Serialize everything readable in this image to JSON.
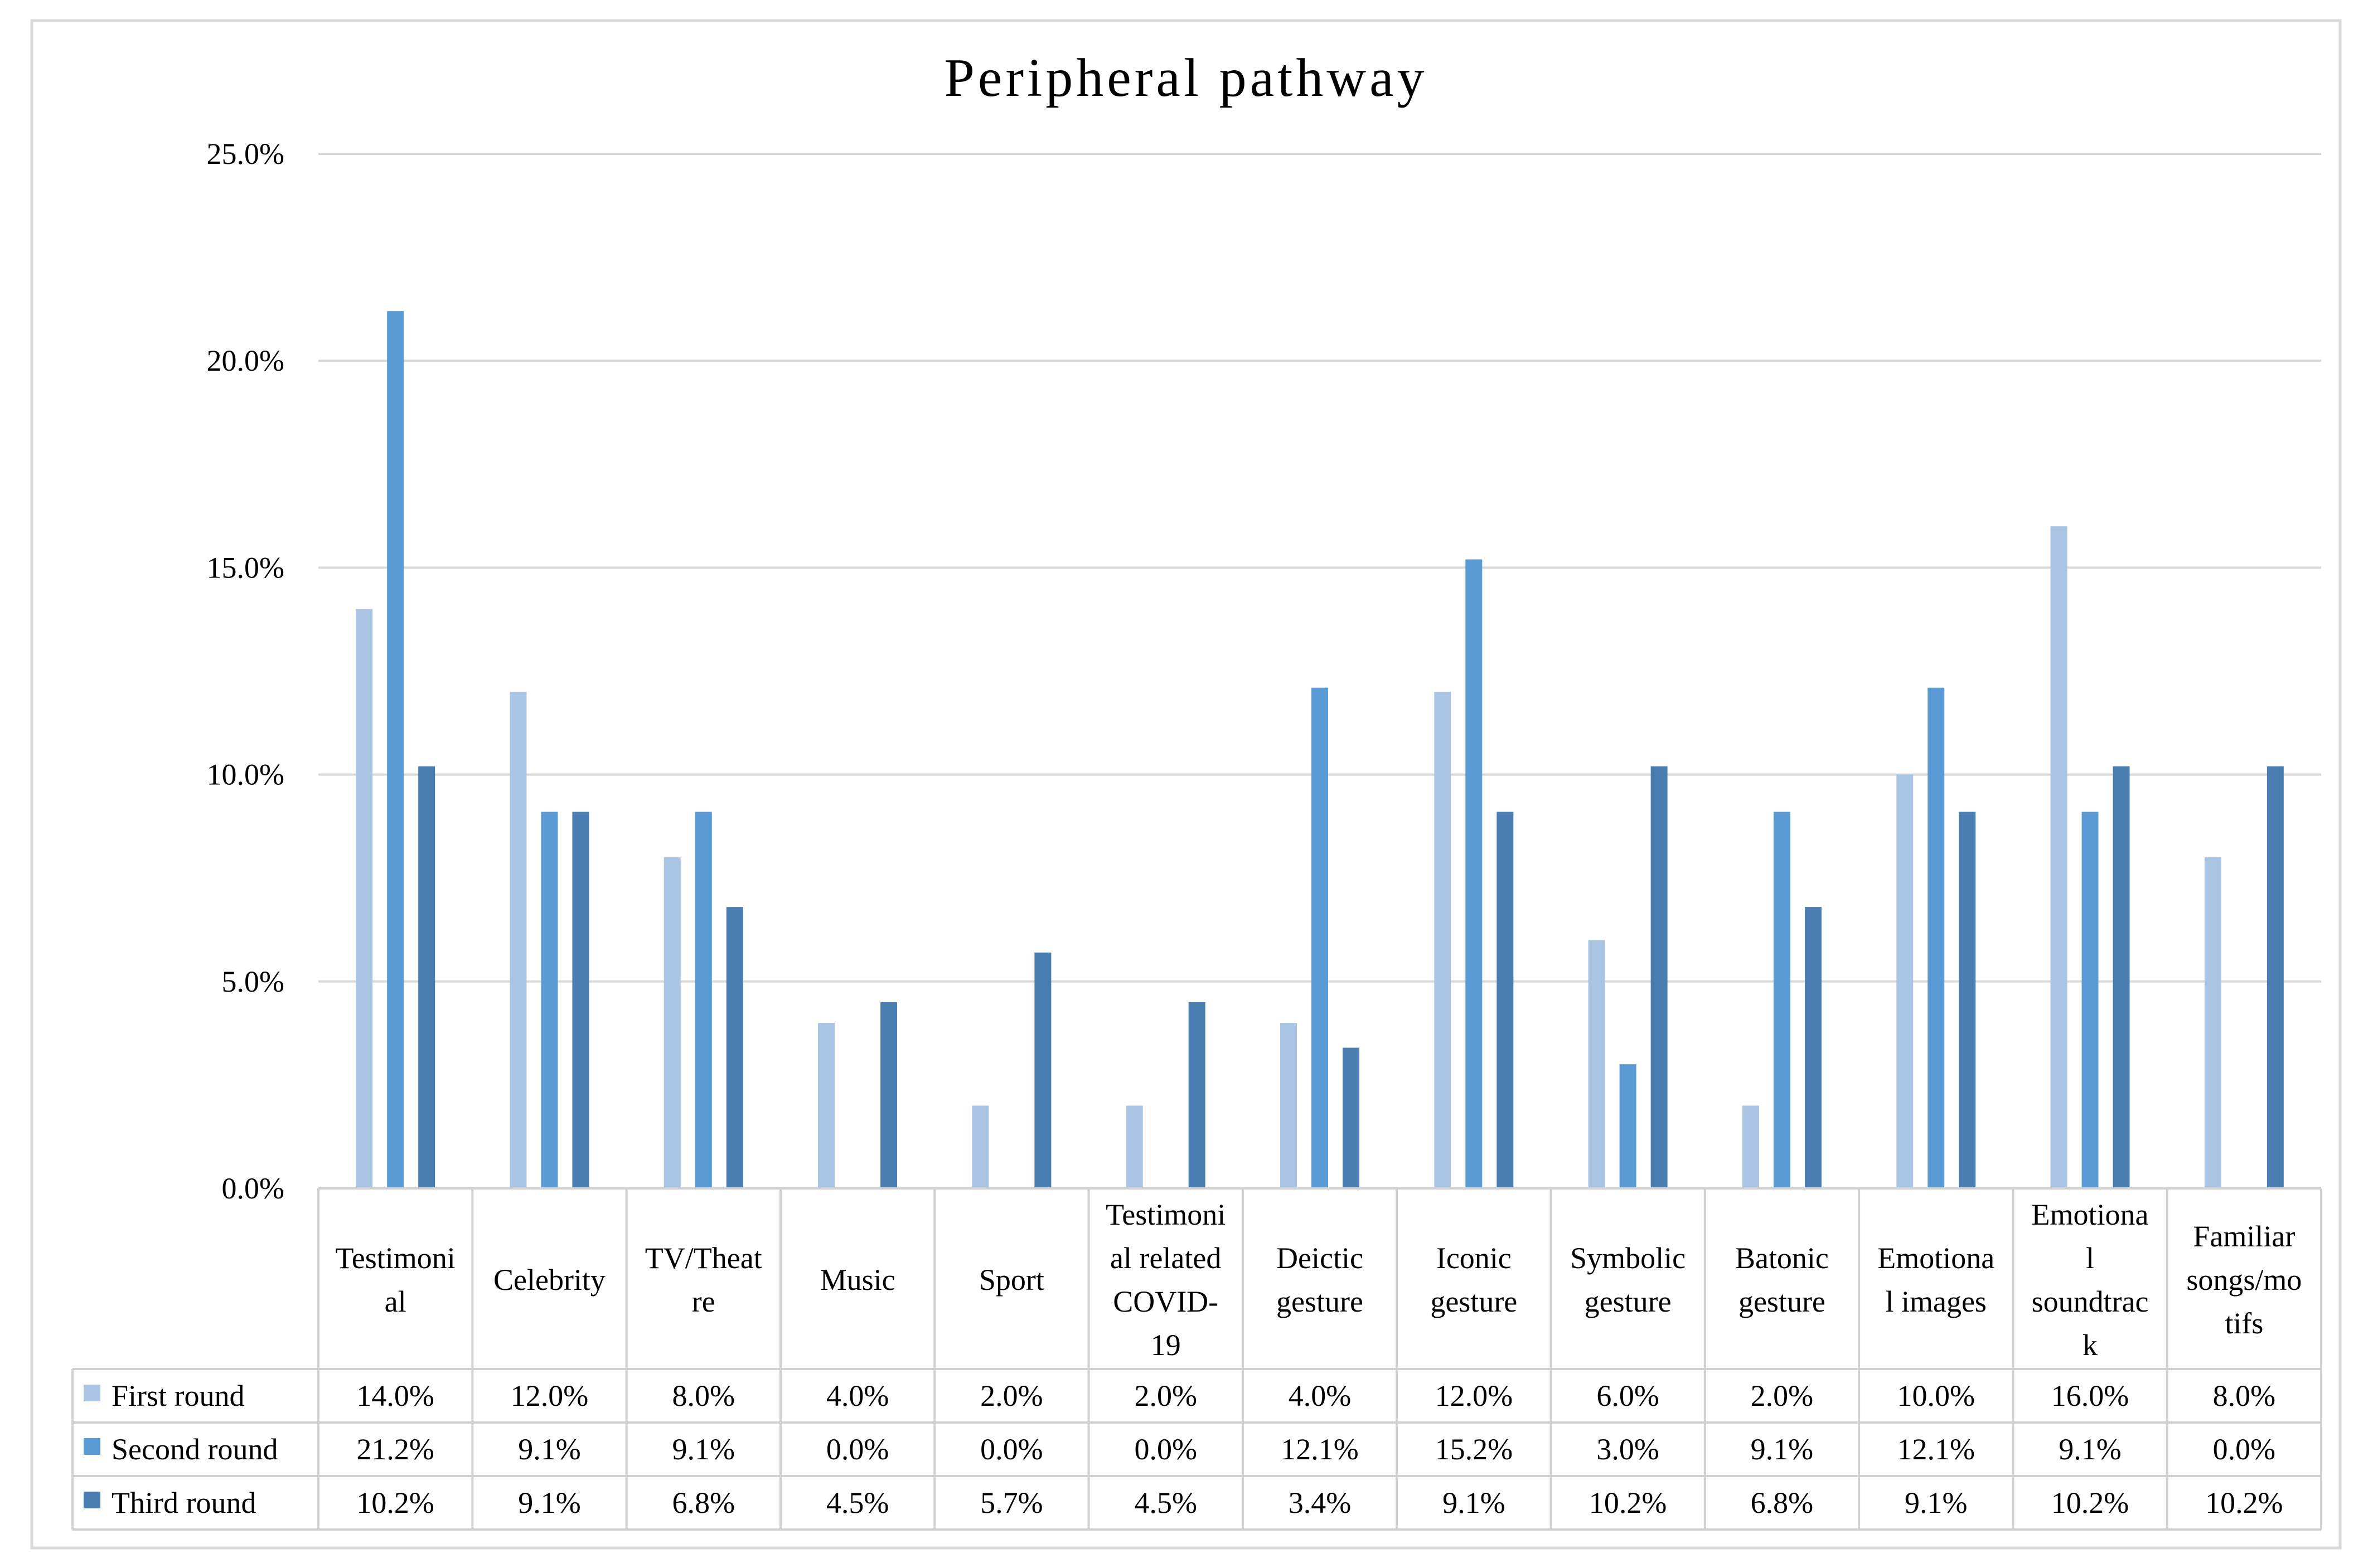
{
  "chart_data": {
    "type": "bar",
    "title": "Peripheral pathway",
    "xlabel": "",
    "ylabel": "",
    "ylim": [
      0,
      25
    ],
    "y_ticks": [
      "0.0%",
      "5.0%",
      "10.0%",
      "15.0%",
      "20.0%",
      "25.0%"
    ],
    "y_tick_values": [
      0,
      5,
      10,
      15,
      20,
      25
    ],
    "grid": true,
    "legend_placement": "data-table-left",
    "categories": [
      [
        "Testimoni",
        "al"
      ],
      [
        "Celebrity"
      ],
      [
        "TV/Theat",
        "re"
      ],
      [
        "Music"
      ],
      [
        "Sport"
      ],
      [
        "Testimoni",
        "al related",
        "COVID-",
        "19"
      ],
      [
        "Deictic",
        "gesture"
      ],
      [
        "Iconic",
        "gesture"
      ],
      [
        "Symbolic",
        "gesture"
      ],
      [
        "Batonic",
        "gesture"
      ],
      [
        "Emotiona",
        "l images"
      ],
      [
        "Emotiona",
        "l",
        "soundtrac",
        "k"
      ],
      [
        "Familiar",
        "songs/mo",
        "tifs"
      ]
    ],
    "series": [
      {
        "name": "First round",
        "color": "#aac4e4",
        "values": [
          14.0,
          12.0,
          8.0,
          4.0,
          2.0,
          2.0,
          4.0,
          12.0,
          6.0,
          2.0,
          10.0,
          16.0,
          8.0
        ],
        "labels": [
          "14.0%",
          "12.0%",
          "8.0%",
          "4.0%",
          "2.0%",
          "2.0%",
          "4.0%",
          "12.0%",
          "6.0%",
          "2.0%",
          "10.0%",
          "16.0%",
          "8.0%"
        ]
      },
      {
        "name": "Second round",
        "color": "#5b9bd5",
        "values": [
          21.2,
          9.1,
          9.1,
          0.0,
          0.0,
          0.0,
          12.1,
          15.2,
          3.0,
          9.1,
          12.1,
          9.1,
          0.0
        ],
        "labels": [
          "21.2%",
          "9.1%",
          "9.1%",
          "0.0%",
          "0.0%",
          "0.0%",
          "12.1%",
          "15.2%",
          "3.0%",
          "9.1%",
          "12.1%",
          "9.1%",
          "0.0%"
        ]
      },
      {
        "name": "Third round",
        "color": "#4a7eb3",
        "values": [
          10.2,
          9.1,
          6.8,
          4.5,
          5.7,
          4.5,
          3.4,
          9.1,
          10.2,
          6.8,
          9.1,
          10.2,
          10.2
        ],
        "labels": [
          "10.2%",
          "9.1%",
          "6.8%",
          "4.5%",
          "5.7%",
          "4.5%",
          "3.4%",
          "9.1%",
          "10.2%",
          "6.8%",
          "9.1%",
          "10.2%",
          "10.2%"
        ]
      }
    ]
  }
}
